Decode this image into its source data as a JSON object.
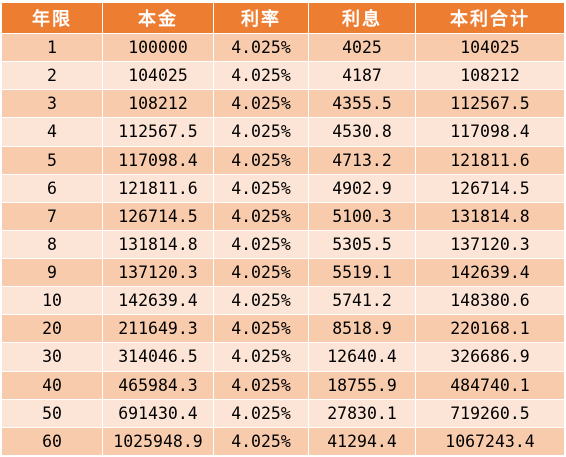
{
  "colors": {
    "header_bg": "#ed7d31",
    "header_text": "#ffffff",
    "row_odd_bg": "#f8cbad",
    "row_even_bg": "#fce4d6",
    "cell_text": "#000000",
    "border": "#ffffff"
  },
  "table": {
    "headers": [
      "年限",
      "本金",
      "利率",
      "利息",
      "本利合计"
    ],
    "rows": [
      [
        "1",
        "100000",
        "4.025%",
        "4025",
        "104025"
      ],
      [
        "2",
        "104025",
        "4.025%",
        "4187",
        "108212"
      ],
      [
        "3",
        "108212",
        "4.025%",
        "4355.5",
        "112567.5"
      ],
      [
        "4",
        "112567.5",
        "4.025%",
        "4530.8",
        "117098.4"
      ],
      [
        "5",
        "117098.4",
        "4.025%",
        "4713.2",
        "121811.6"
      ],
      [
        "6",
        "121811.6",
        "4.025%",
        "4902.9",
        "126714.5"
      ],
      [
        "7",
        "126714.5",
        "4.025%",
        "5100.3",
        "131814.8"
      ],
      [
        "8",
        "131814.8",
        "4.025%",
        "5305.5",
        "137120.3"
      ],
      [
        "9",
        "137120.3",
        "4.025%",
        "5519.1",
        "142639.4"
      ],
      [
        "10",
        "142639.4",
        "4.025%",
        "5741.2",
        "148380.6"
      ],
      [
        "20",
        "211649.3",
        "4.025%",
        "8518.9",
        "220168.1"
      ],
      [
        "30",
        "314046.5",
        "4.025%",
        "12640.4",
        "326686.9"
      ],
      [
        "40",
        "465984.3",
        "4.025%",
        "18755.9",
        "484740.1"
      ],
      [
        "50",
        "691430.4",
        "4.025%",
        "27830.1",
        "719260.5"
      ],
      [
        "60",
        "1025948.9",
        "4.025%",
        "41294.4",
        "1067243.4"
      ]
    ]
  }
}
